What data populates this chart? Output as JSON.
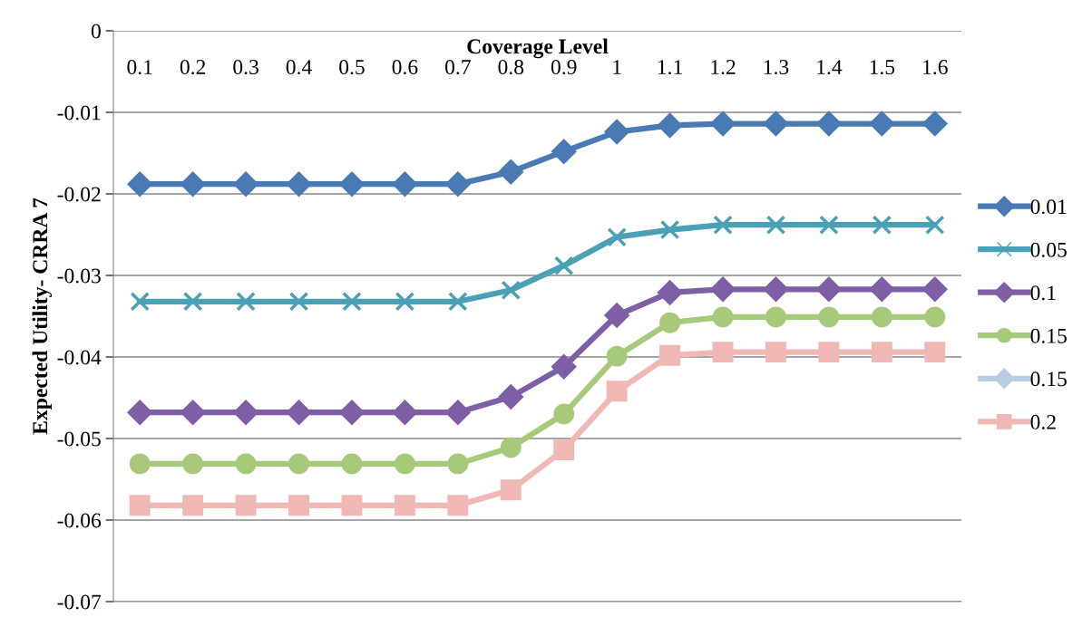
{
  "chart_data": {
    "type": "line",
    "xlabel": "Coverage Level",
    "ylabel": "Expected Utility- CRRA 7",
    "categories": [
      "0.1",
      "0.2",
      "0.3",
      "0.4",
      "0.5",
      "0.6",
      "0.7",
      "0.8",
      "0.9",
      "1",
      "1.1",
      "1.2",
      "1.3",
      "1.4",
      "1.5",
      "1.6"
    ],
    "series": [
      {
        "name": "0.01",
        "color": "#4a7ab4",
        "marker": "diamond",
        "values": [
          -0.0188,
          -0.0188,
          -0.0188,
          -0.0188,
          -0.0188,
          -0.0188,
          -0.0188,
          -0.0173,
          -0.0148,
          -0.0124,
          -0.0116,
          -0.0114,
          -0.0114,
          -0.0114,
          -0.0114,
          -0.0114
        ]
      },
      {
        "name": "0.05",
        "color": "#4aa0b5",
        "marker": "cross",
        "values": [
          -0.0332,
          -0.0332,
          -0.0332,
          -0.0332,
          -0.0332,
          -0.0332,
          -0.0332,
          -0.0318,
          -0.0288,
          -0.0253,
          -0.0244,
          -0.0238,
          -0.0238,
          -0.0238,
          -0.0238,
          -0.0238
        ]
      },
      {
        "name": "0.1",
        "color": "#7e5fa5",
        "marker": "diamond",
        "values": [
          -0.0468,
          -0.0468,
          -0.0468,
          -0.0468,
          -0.0468,
          -0.0468,
          -0.0468,
          -0.0449,
          -0.0412,
          -0.0349,
          -0.0321,
          -0.0317,
          -0.0317,
          -0.0317,
          -0.0317,
          -0.0317
        ]
      },
      {
        "name": "0.15",
        "color": "#a6c97a",
        "marker": "circle",
        "values": [
          -0.0531,
          -0.0531,
          -0.0531,
          -0.0531,
          -0.0531,
          -0.0531,
          -0.0531,
          -0.0511,
          -0.047,
          -0.0399,
          -0.0358,
          -0.0351,
          -0.0351,
          -0.0351,
          -0.0351,
          -0.0351
        ]
      },
      {
        "name": "0.15",
        "color": "#b8cce4",
        "marker": "diamond",
        "values": [
          null,
          null,
          null,
          null,
          null,
          null,
          null,
          null,
          null,
          null,
          null,
          null,
          null,
          null,
          null,
          null
        ]
      },
      {
        "name": "0.2",
        "color": "#f0b8b5",
        "marker": "square",
        "values": [
          -0.0582,
          -0.0582,
          -0.0582,
          -0.0582,
          -0.0582,
          -0.0582,
          -0.0582,
          -0.0563,
          -0.0514,
          -0.0442,
          -0.0398,
          -0.0394,
          -0.0394,
          -0.0394,
          -0.0394,
          -0.0394
        ]
      }
    ],
    "ylim": [
      -0.07,
      0
    ],
    "yticks": [
      {
        "value": -0.07,
        "label": "-0.07"
      },
      {
        "value": -0.06,
        "label": "-0.06"
      },
      {
        "value": -0.05,
        "label": "-0.05"
      },
      {
        "value": -0.04,
        "label": "-0.04"
      },
      {
        "value": -0.03,
        "label": "-0.03"
      },
      {
        "value": -0.02,
        "label": "-0.02"
      },
      {
        "value": -0.01,
        "label": "-0.01"
      },
      {
        "value": 0,
        "label": "0"
      }
    ],
    "grid": "y",
    "legend": "right",
    "line_style": "solid"
  }
}
